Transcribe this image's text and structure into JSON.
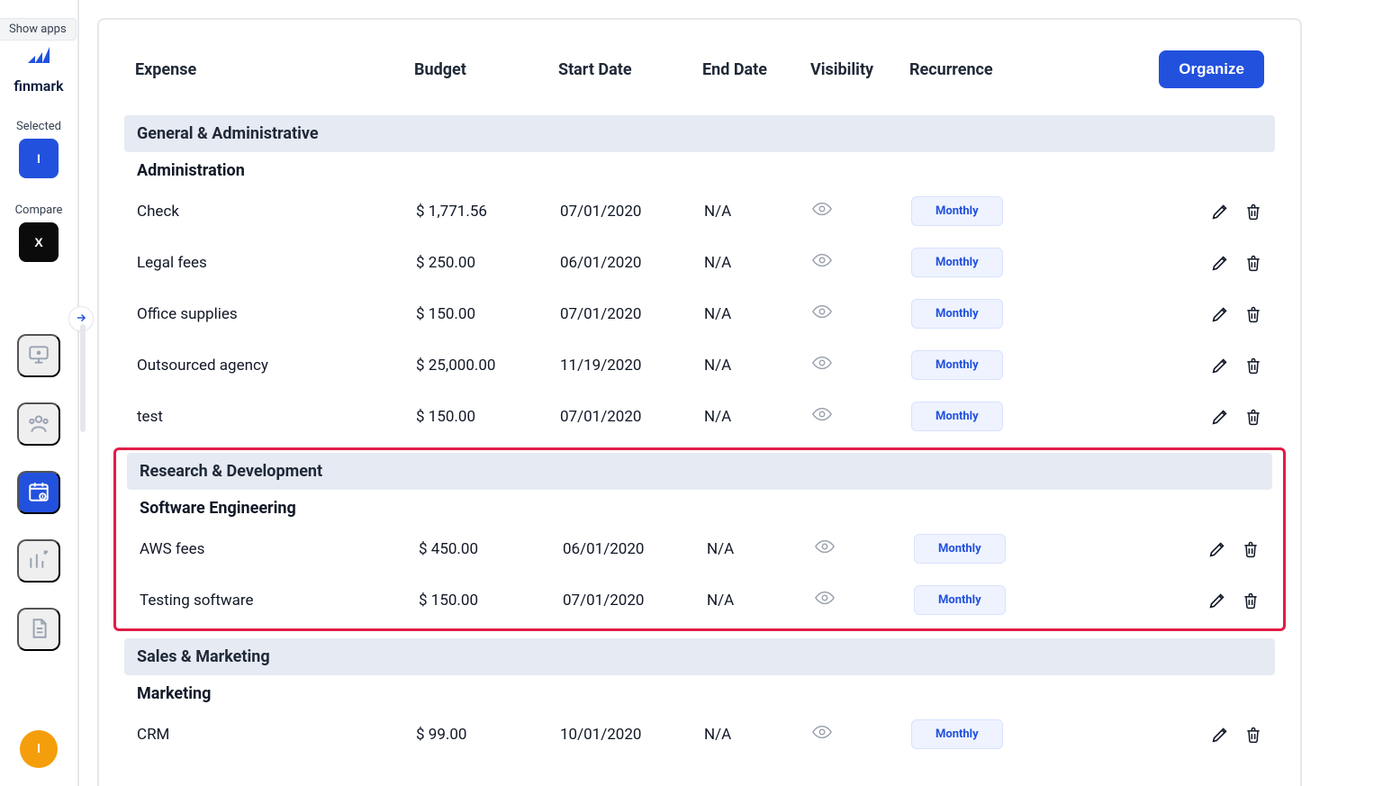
{
  "colors": {
    "primary": "#2251dd",
    "pill_bg": "#eef3ff",
    "pill_border": "#d8e2ff",
    "group_bg": "#e6eaf3",
    "danger": "#ef4444",
    "highlight": "#e11d48",
    "avatar": "#f59e0b",
    "muted_icon": "#9aa3b2"
  },
  "show_apps_label": "Show apps",
  "brand": {
    "name": "finmark"
  },
  "sidebar": {
    "selected_label": "Selected",
    "selected_letter": "I",
    "compare_label": "Compare",
    "compare_letter": "X",
    "avatar_letter": "I"
  },
  "table": {
    "headers": {
      "expense": "Expense",
      "budget": "Budget",
      "start_date": "Start Date",
      "end_date": "End Date",
      "visibility": "Visibility",
      "recurrence": "Recurrence"
    },
    "organize_label": "Organize"
  },
  "groups": [
    {
      "title": "General & Administrative",
      "highlighted": false,
      "subgroups": [
        {
          "title": "Administration",
          "rows": [
            {
              "expense": "Check",
              "budget": "$ 1,771.56",
              "start": "07/01/2020",
              "end": "N/A",
              "recurrence": "Monthly"
            },
            {
              "expense": "Legal fees",
              "budget": "$ 250.00",
              "start": "06/01/2020",
              "end": "N/A",
              "recurrence": "Monthly"
            },
            {
              "expense": "Office supplies",
              "budget": "$ 150.00",
              "start": "07/01/2020",
              "end": "N/A",
              "recurrence": "Monthly"
            },
            {
              "expense": "Outsourced agency",
              "budget": "$ 25,000.00",
              "start": "11/19/2020",
              "end": "N/A",
              "recurrence": "Monthly"
            },
            {
              "expense": "test",
              "budget": "$ 150.00",
              "start": "07/01/2020",
              "end": "N/A",
              "recurrence": "Monthly"
            }
          ]
        }
      ]
    },
    {
      "title": "Research & Development",
      "highlighted": true,
      "subgroups": [
        {
          "title": "Software Engineering",
          "rows": [
            {
              "expense": "AWS fees",
              "budget": "$ 450.00",
              "start": "06/01/2020",
              "end": "N/A",
              "recurrence": "Monthly"
            },
            {
              "expense": "Testing software",
              "budget": "$ 150.00",
              "start": "07/01/2020",
              "end": "N/A",
              "recurrence": "Monthly"
            }
          ]
        }
      ]
    },
    {
      "title": "Sales & Marketing",
      "highlighted": false,
      "subgroups": [
        {
          "title": "Marketing",
          "rows": [
            {
              "expense": "CRM",
              "budget": "$ 99.00",
              "start": "10/01/2020",
              "end": "N/A",
              "recurrence": "Monthly"
            }
          ]
        }
      ]
    }
  ]
}
